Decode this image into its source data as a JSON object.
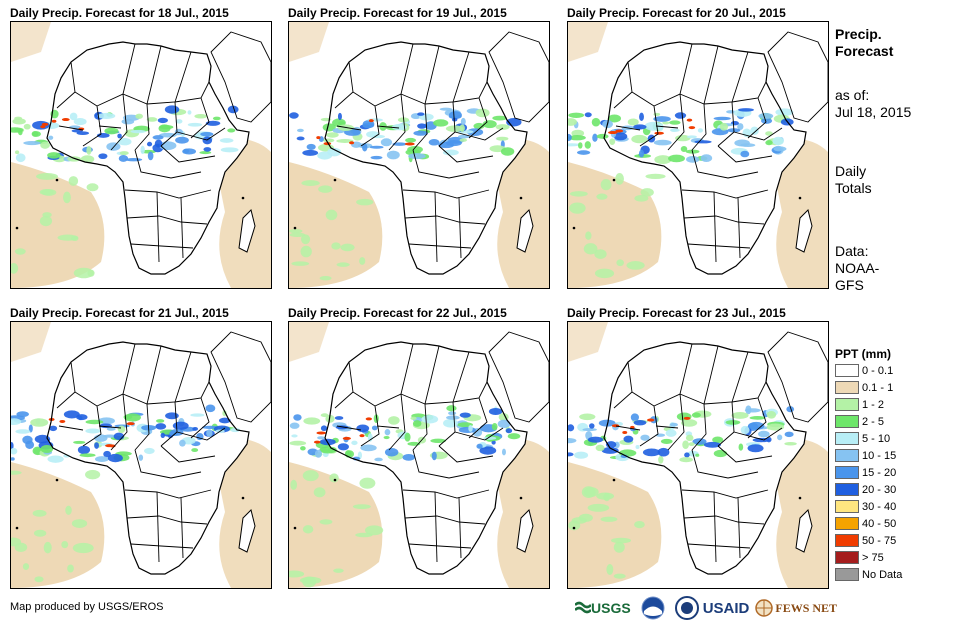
{
  "panels": [
    {
      "title": "Daily Precip. Forecast for 18 Jul., 2015"
    },
    {
      "title": "Daily Precip. Forecast for 19 Jul., 2015"
    },
    {
      "title": "Daily Precip. Forecast for 20 Jul., 2015"
    },
    {
      "title": "Daily Precip. Forecast for 21 Jul., 2015"
    },
    {
      "title": "Daily Precip. Forecast for 22 Jul., 2015"
    },
    {
      "title": "Daily Precip. Forecast for 23 Jul., 2015"
    }
  ],
  "side_info": {
    "heading_line1": "Precip.",
    "heading_line2": "Forecast",
    "asof_line1": "as of:",
    "asof_line2": "Jul 18, 2015",
    "totals_line1": "Daily",
    "totals_line2": "Totals",
    "data_line1": "Data:",
    "data_line2": "NOAA-",
    "data_line3": "GFS"
  },
  "legend": {
    "title": "PPT (mm)",
    "items": [
      {
        "label": "0 - 0.1",
        "color": "#ffffff"
      },
      {
        "label": "0.1 - 1",
        "color": "#eed9b6"
      },
      {
        "label": "1 - 2",
        "color": "#b4f2a6"
      },
      {
        "label": "2 - 5",
        "color": "#6ee66a"
      },
      {
        "label": "5 - 10",
        "color": "#b8eef6"
      },
      {
        "label": "10 - 15",
        "color": "#86c3f2"
      },
      {
        "label": "15 - 20",
        "color": "#4a95ec"
      },
      {
        "label": "20 - 30",
        "color": "#1f5fe0"
      },
      {
        "label": "30 - 40",
        "color": "#ffe680"
      },
      {
        "label": "40 - 50",
        "color": "#f5a300"
      },
      {
        "label": "50 - 75",
        "color": "#f03c00"
      },
      {
        "label": "> 75",
        "color": "#a51d1d"
      },
      {
        "label": "No Data",
        "color": "#999999"
      }
    ]
  },
  "credit": "Map produced by USGS/EROS",
  "logos": {
    "usgs": "USGS",
    "usaid": "USAID",
    "fewsnet": "FEWS NET"
  }
}
